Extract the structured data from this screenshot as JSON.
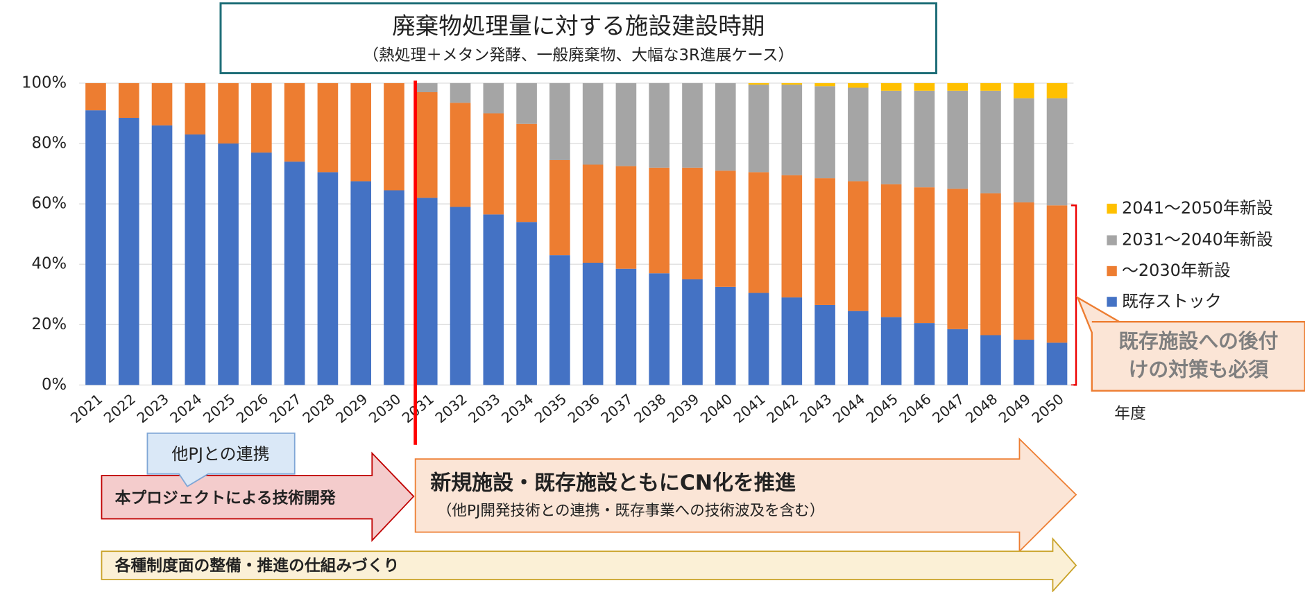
{
  "chart_data": {
    "type": "stacked_bar",
    "title": "廃棄物処理量に対する施設建設時期",
    "subtitle": "（熱処理＋メタン発酵、一般廃棄物、大幅な3R進展ケース）",
    "xlabel": "年度",
    "categories": [
      "2021",
      "2022",
      "2023",
      "2024",
      "2025",
      "2026",
      "2027",
      "2028",
      "2029",
      "2030",
      "2031",
      "2032",
      "2033",
      "2034",
      "2035",
      "2036",
      "2037",
      "2038",
      "2039",
      "2040",
      "2041",
      "2042",
      "2043",
      "2044",
      "2045",
      "2046",
      "2047",
      "2048",
      "2049",
      "2050"
    ],
    "series": [
      {
        "name": "既存ストック",
        "color": "#4472c4",
        "values": [
          91,
          88.5,
          86,
          83,
          80,
          77,
          74,
          70.5,
          67.5,
          64.5,
          62,
          59,
          56.5,
          54,
          43,
          40.5,
          38.5,
          37,
          35,
          32.5,
          30.5,
          29,
          26.5,
          24.5,
          22.5,
          20.5,
          18.5,
          16.5,
          15,
          14
        ]
      },
      {
        "name": "～2030年新設",
        "color": "#ed7d31",
        "values": [
          9,
          11.5,
          14,
          17,
          20,
          23,
          26,
          29.5,
          32.5,
          35.5,
          35,
          34.5,
          33.5,
          32.5,
          31.5,
          32.5,
          34,
          35,
          37,
          38.5,
          40,
          40.5,
          42,
          43,
          44,
          45,
          46.5,
          47,
          45.5,
          45.5
        ]
      },
      {
        "name": "2031～2040年新設",
        "color": "#a5a5a5",
        "values": [
          0,
          0,
          0,
          0,
          0,
          0,
          0,
          0,
          0,
          0,
          3,
          6.5,
          10,
          13.5,
          25.5,
          27,
          27.5,
          28,
          28,
          29,
          29,
          30,
          30.5,
          31,
          31,
          32,
          32.5,
          34,
          34.5,
          35.5
        ]
      },
      {
        "name": "2041～2050年新設",
        "color": "#ffc000",
        "values": [
          0,
          0,
          0,
          0,
          0,
          0,
          0,
          0,
          0,
          0,
          0,
          0,
          0,
          0,
          0,
          0,
          0,
          0,
          0,
          0,
          0.5,
          0.5,
          1,
          1.5,
          2.5,
          2.5,
          2.5,
          2.5,
          5,
          5
        ]
      }
    ],
    "ylim": [
      0,
      100
    ],
    "yticks": [
      {
        "value": 0,
        "label": "0%"
      },
      {
        "value": 20,
        "label": "20%"
      },
      {
        "value": 40,
        "label": "40%"
      },
      {
        "value": 60,
        "label": "60%"
      },
      {
        "value": 80,
        "label": "80%"
      },
      {
        "value": 100,
        "label": "100%"
      }
    ],
    "grid": true,
    "annotations": {
      "callout": "既存施設への後付けの対策も必須",
      "callout_lines": [
        "既存施設への後付",
        "けの対策も必須"
      ],
      "bubble": "他PJとの連携",
      "arrow1": "本プロジェクトによる技術開発",
      "arrow2": "新規施設・既存施設ともにCN化を推進",
      "arrow2_sub": "（他PJ開発技術との連携・既存事業への技術波及を含む）",
      "arrow3": "各種制度面の整備・推進の仕組みづくり"
    }
  }
}
